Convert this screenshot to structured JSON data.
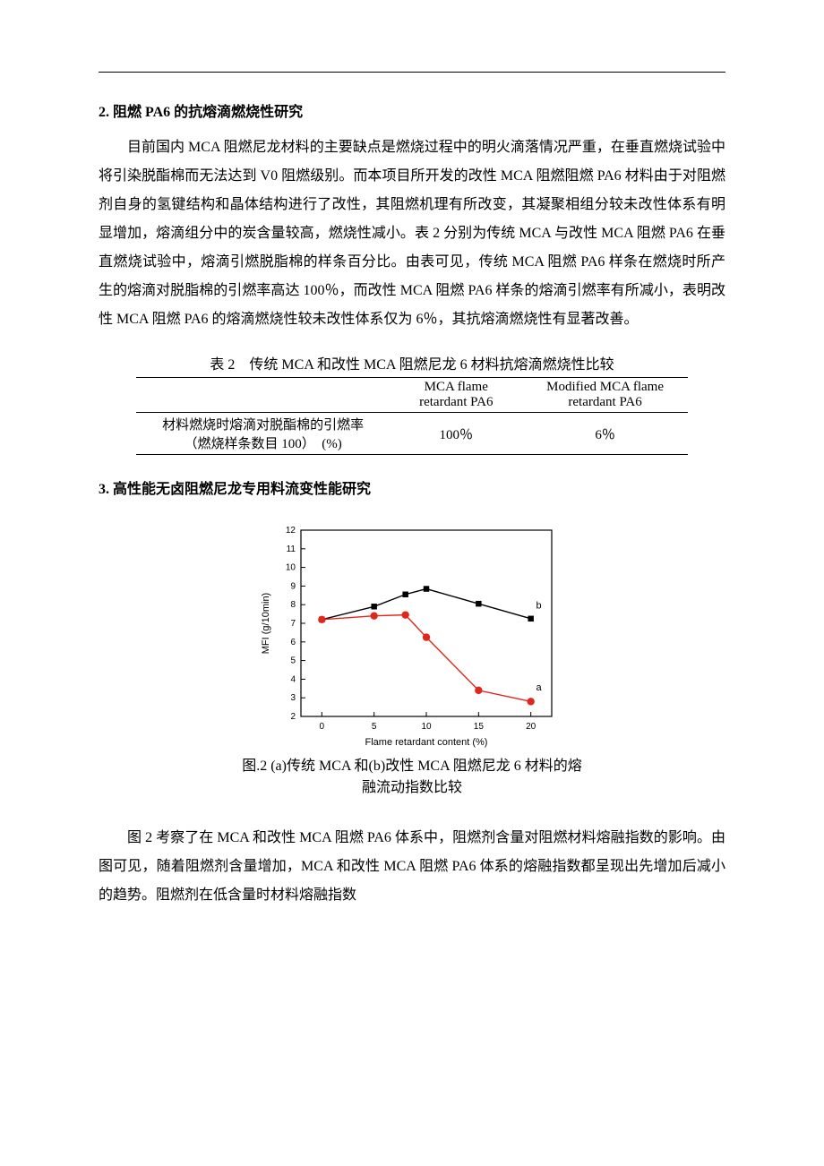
{
  "section2": {
    "heading": "2. 阻燃 PA6 的抗熔滴燃烧性研究",
    "para": "目前国内 MCA 阻燃尼龙材料的主要缺点是燃烧过程中的明火滴落情况严重，在垂直燃烧试验中将引染脱酯棉而无法达到 V0 阻燃级别。而本项目所开发的改性 MCA 阻燃阻燃 PA6 材料由于对阻燃剂自身的氢键结构和晶体结构进行了改性，其阻燃机理有所改变，其凝聚相组分较未改性体系有明显增加，熔滴组分中的炭含量较高，燃烧性减小。表 2 分别为传统 MCA 与改性 MCA 阻燃 PA6 在垂直燃烧试验中，熔滴引燃脱脂棉的样条百分比。由表可见，传统 MCA 阻燃 PA6 样条在燃烧时所产生的熔滴对脱脂棉的引燃率高达 100％，而改性 MCA 阻燃 PA6 样条的熔滴引燃率有所减小，表明改性 MCA 阻燃 PA6 的熔滴燃烧性较未改性体系仅为 6％，其抗熔滴燃烧性有显著改善。"
  },
  "table2": {
    "caption": "表 2　传统 MCA 和改性 MCA 阻燃尼龙 6 材料抗熔滴燃烧性比较",
    "col1_line1": "MCA flame",
    "col1_line2": "retardant PA6",
    "col2_line1": "Modified MCA flame",
    "col2_line2": "retardant PA6",
    "row_label_line1": "材料燃烧时熔滴对脱酯棉的引燃率",
    "row_label_line2": "（燃烧样条数目 100）　(%)",
    "val1": "100％",
    "val2": "6％"
  },
  "section3": {
    "heading": "3. 高性能无卤阻燃尼龙专用料流变性能研究"
  },
  "fig2": {
    "type": "line",
    "xlabel": "Flame retardant content (%)",
    "ylabel": "MFI (g/10min)",
    "xlim": [
      -2,
      22
    ],
    "ylim": [
      2,
      12
    ],
    "xticks": [
      0,
      5,
      10,
      15,
      20
    ],
    "yticks": [
      2,
      3,
      4,
      5,
      6,
      7,
      8,
      9,
      10,
      11,
      12
    ],
    "label_fontsize": 11,
    "tick_fontsize": 10,
    "background_color": "#ffffff",
    "frame_color": "#000000",
    "frame_width": 1.2,
    "line_width": 1.4,
    "marker_size": 4.2,
    "series": {
      "a": {
        "label": "a",
        "color": "#e1261c",
        "marker": "circle",
        "x": [
          0,
          5,
          8,
          10,
          15,
          20
        ],
        "y": [
          7.2,
          7.4,
          7.45,
          6.25,
          3.4,
          2.8
        ]
      },
      "b": {
        "label": "b",
        "color": "#000000",
        "marker": "square",
        "x": [
          0,
          5,
          8,
          10,
          15,
          20
        ],
        "y": [
          7.2,
          7.9,
          8.55,
          8.85,
          8.05,
          7.25
        ]
      }
    },
    "series_label_pos": {
      "a": {
        "x": 20.5,
        "y": 3.4
      },
      "b": {
        "x": 20.5,
        "y": 7.8
      }
    },
    "caption_line1": "图.2 (a)传统 MCA 和(b)改性 MCA 阻燃尼龙 6 材料的熔",
    "caption_line2": "融流动指数比较"
  },
  "closing_para": "图 2 考察了在 MCA 和改性 MCA 阻燃 PA6 体系中，阻燃剂含量对阻燃材料熔融指数的影响。由图可见，随着阻燃剂含量增加，MCA 和改性 MCA 阻燃 PA6 体系的熔融指数都呈现出先增加后减小的趋势。阻燃剂在低含量时材料熔融指数"
}
